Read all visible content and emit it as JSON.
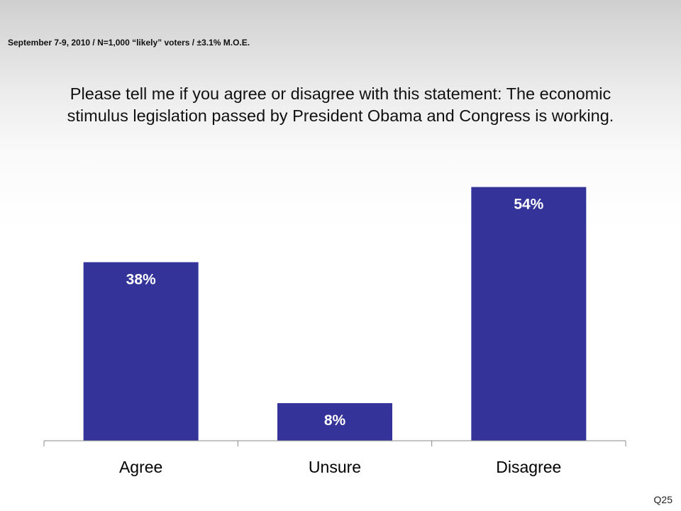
{
  "header": {
    "subtitle": "September 7-9, 2010 / N=1,000 “likely” voters / ±3.1% M.O.E.",
    "title_line1": "Please tell me if you agree or disagree with this statement: The economic",
    "title_line2": "stimulus legislation passed by President Obama and Congress is working."
  },
  "footer": {
    "question_id": "Q25"
  },
  "chart_data": {
    "type": "bar",
    "categories": [
      "Agree",
      "Unsure",
      "Disagree"
    ],
    "values": [
      38,
      8,
      54
    ],
    "data_labels": [
      "38%",
      "8%",
      "54%"
    ],
    "ylim": [
      0,
      60
    ],
    "grid": false,
    "legend": "none",
    "bar_color": "#333399"
  }
}
